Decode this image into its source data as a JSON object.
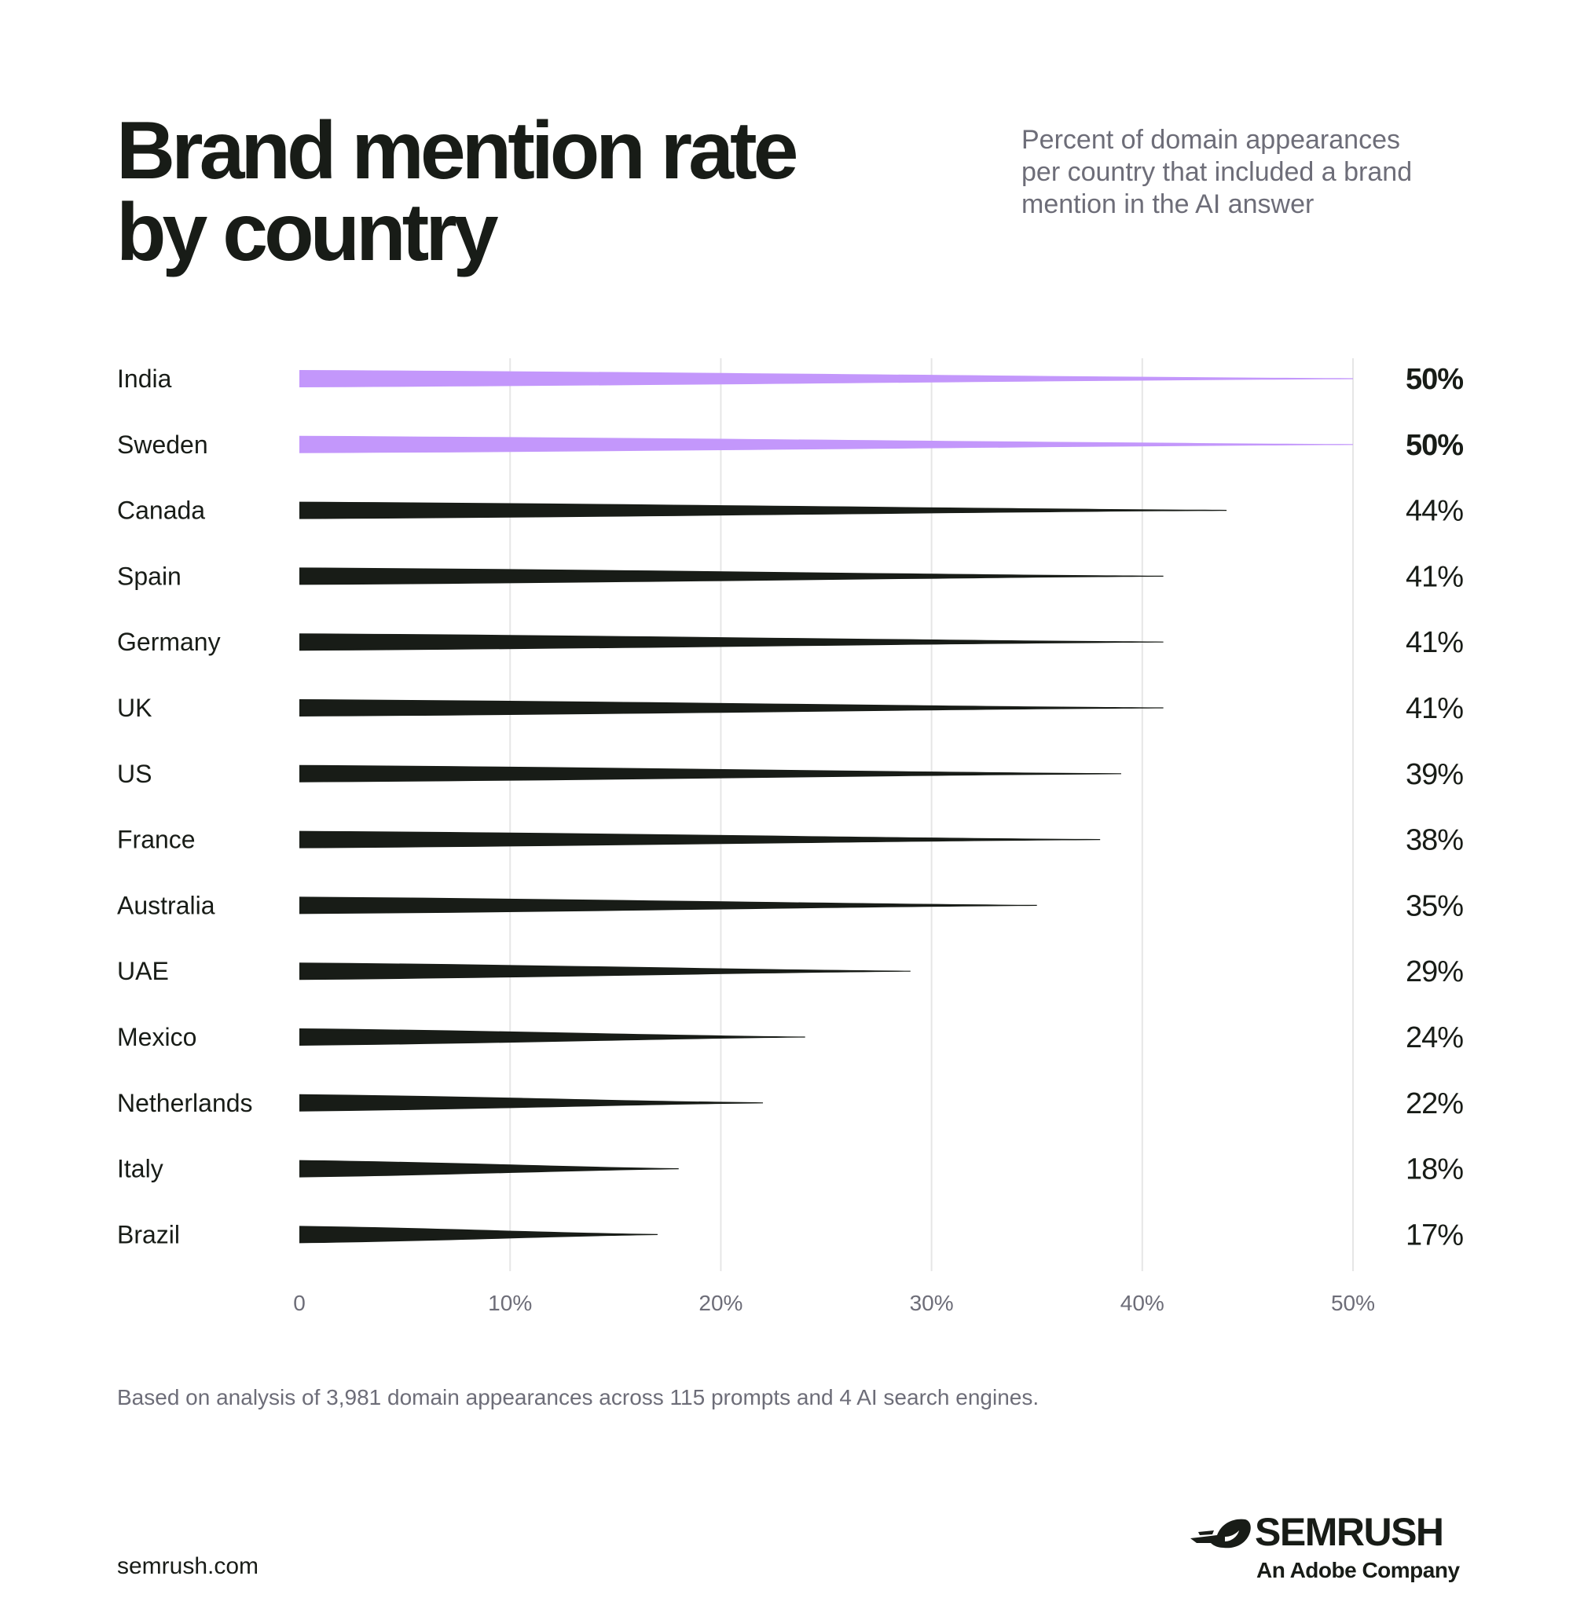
{
  "header": {
    "title_line1": "Brand mention rate",
    "title_line2": "by country",
    "subtitle_line1": "Percent of domain appearances",
    "subtitle_line2": "per country that included a brand",
    "subtitle_line3": "mention in  the AI answer"
  },
  "chart_data": {
    "type": "bar",
    "orientation": "horizontal",
    "categories": [
      "India",
      "Sweden",
      "Canada",
      "Spain",
      "Germany",
      "UK",
      "US",
      "France",
      "Australia",
      "UAE",
      "Mexico",
      "Netherlands",
      "Italy",
      "Brazil"
    ],
    "values": [
      50,
      50,
      44,
      41,
      41,
      41,
      39,
      38,
      35,
      29,
      24,
      22,
      18,
      17
    ],
    "value_labels": [
      "50%",
      "50%",
      "44%",
      "41%",
      "41%",
      "41%",
      "39%",
      "38%",
      "35%",
      "29%",
      "24%",
      "22%",
      "18%",
      "17%"
    ],
    "highlighted": [
      "India",
      "Sweden"
    ],
    "xlim": [
      0,
      50
    ],
    "x_ticks": [
      0,
      10,
      20,
      30,
      40,
      50
    ],
    "x_tick_labels": [
      "0",
      "10%",
      "20%",
      "30%",
      "40%",
      "50%"
    ],
    "grid": "vertical",
    "colors": {
      "highlight": "#c397fb",
      "default": "#181c17",
      "grid": "#e6e6e6",
      "tick_label": "#6d6d78"
    }
  },
  "footer": {
    "footnote": "Based on analysis of 3,981 domain appearances across 115 prompts and 4 AI search engines.",
    "site": "semrush.com",
    "logo_name": "SEMRUSH",
    "logo_tagline": "An Adobe Company"
  }
}
